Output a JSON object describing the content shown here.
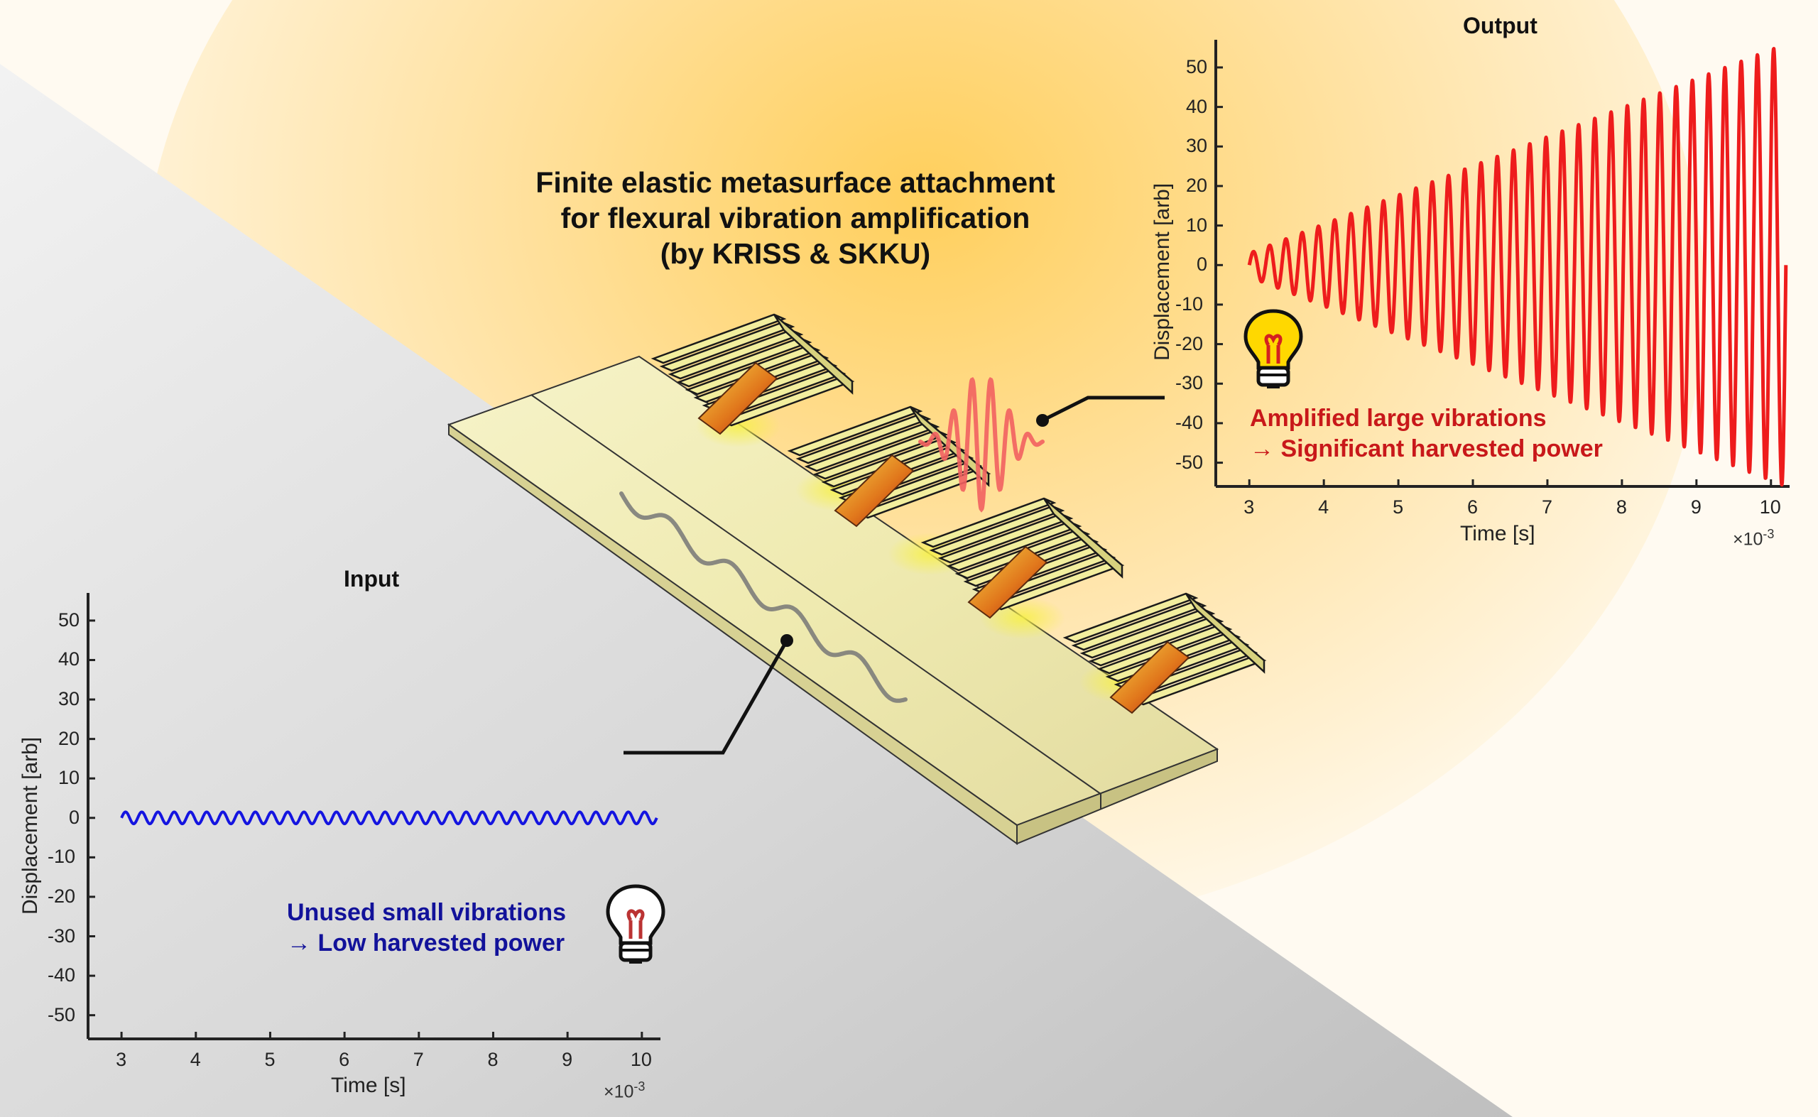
{
  "header": {
    "title_lines": [
      "Finite elastic metasurface attachment",
      "for flexural vibration amplification",
      "(by KRISS & SKKU)"
    ]
  },
  "colors": {
    "input_signal": "#1414e0",
    "output_signal": "#ee1c1c",
    "input_note": "#12129a",
    "output_note": "#c8181a",
    "glow": "#ffd884",
    "plate": "#f2efb8"
  },
  "icons": [
    "lightbulb-lit-icon",
    "lightbulb-unlit-icon"
  ],
  "chart_data": [
    {
      "type": "line",
      "title": "Output",
      "xlabel": "Time [s]",
      "ylabel": "Displacement [arb]",
      "x_multiplier": "×10",
      "x_multiplier_exp": "-3",
      "xlim": [
        2.55,
        10.25
      ],
      "ylim": [
        -56,
        57
      ],
      "xticks": [
        3,
        4,
        5,
        6,
        7,
        8,
        9,
        10
      ],
      "yticks": [
        50,
        40,
        30,
        20,
        10,
        0,
        -10,
        -20,
        -30,
        -40,
        -50
      ],
      "series": [
        {
          "signal": "chirp-growing",
          "x_start": 3.0,
          "x_end": 10.2,
          "amplitude_start": 3,
          "amplitude_end": 56,
          "cycles": 33,
          "color": "#ee1c1c"
        }
      ],
      "annotation_lines": [
        "Amplified large vibrations",
        "→ Significant harvested power"
      ]
    },
    {
      "type": "line",
      "title": "Input",
      "xlabel": "Time [s]",
      "ylabel": "Displacement [arb]",
      "x_multiplier": "×10",
      "x_multiplier_exp": "-3",
      "xlim": [
        2.55,
        10.25
      ],
      "ylim": [
        -56,
        57
      ],
      "xticks": [
        3,
        4,
        5,
        6,
        7,
        8,
        9,
        10
      ],
      "yticks": [
        50,
        40,
        30,
        20,
        10,
        0,
        -10,
        -20,
        -30,
        -40,
        -50
      ],
      "series": [
        {
          "signal": "sine",
          "x_start": 3.0,
          "x_end": 10.2,
          "amplitude": 1.5,
          "cycles": 33,
          "color": "#1414e0"
        }
      ],
      "annotation_lines": [
        "Unused small vibrations",
        "→ Low harvested power"
      ]
    }
  ]
}
